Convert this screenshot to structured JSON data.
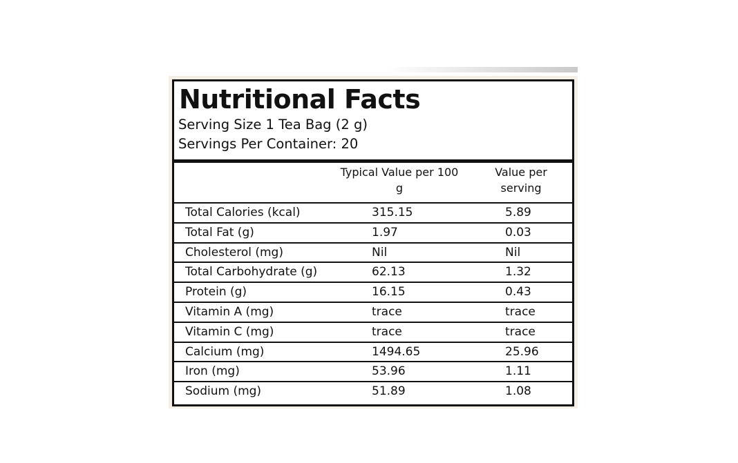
{
  "title": "Nutritional Facts",
  "serving_size": "Serving Size 1 Tea Bag (2 g)",
  "servings_per_container": "Servings Per Container: 20",
  "columns": [
    "Typical Value per 100 g",
    "Value per serving"
  ],
  "rows": [
    {
      "name": "Total Calories (kcal)",
      "per100g": "315.15",
      "perServing": "5.89"
    },
    {
      "name": "Total Fat (g)",
      "per100g": "1.97",
      "perServing": "0.03"
    },
    {
      "name": "Cholesterol (mg)",
      "per100g": "Nil",
      "perServing": "Nil"
    },
    {
      "name": "Total Carbohydrate (g)",
      "per100g": "62.13",
      "perServing": "1.32"
    },
    {
      "name": "Protein (g)",
      "per100g": "16.15",
      "perServing": "0.43"
    },
    {
      "name": "Vitamin A (mg)",
      "per100g": "trace",
      "perServing": "trace"
    },
    {
      "name": "Vitamin C (mg)",
      "per100g": "trace",
      "perServing": "trace"
    },
    {
      "name": "Calcium (mg)",
      "per100g": "1494.65",
      "perServing": "25.96"
    },
    {
      "name": "Iron (mg)",
      "per100g": "53.96",
      "perServing": "1.11"
    },
    {
      "name": "Sodium (mg)",
      "per100g": "51.89",
      "perServing": "1.08"
    }
  ]
}
